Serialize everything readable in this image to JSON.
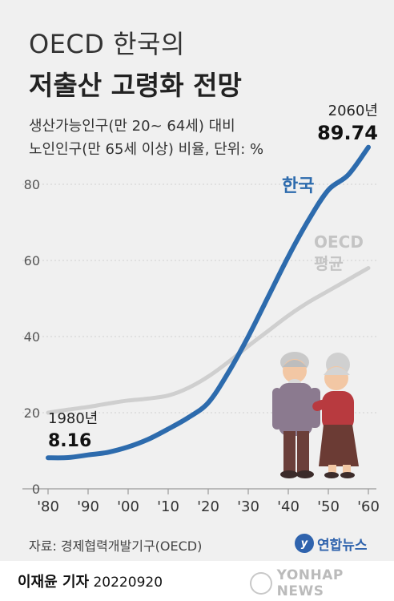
{
  "header": {
    "title_line1": "OECD 한국의",
    "title_line2": "저출산 고령화 전망",
    "subtitle_line1": "생산가능인구(만 20~ 64세) 대비",
    "subtitle_line2": "노인인구(만 65세 이상) 비율, 단위: %"
  },
  "footer": {
    "source": "자료: 경제협력개발기구(OECD)",
    "agency_logo": "연합뉴스",
    "reporter": "이재윤 기자",
    "date": "20220920",
    "watermark": "YONHAP NEWS"
  },
  "colors": {
    "korea": "#2d6bad",
    "oecd": "#cfcfcf",
    "background": "#f0f0f0"
  },
  "chart_data": {
    "type": "line",
    "x_ticks": [
      "'80",
      "'90",
      "'00",
      "'10",
      "'20",
      "'30",
      "'40",
      "'50",
      "'60"
    ],
    "y_ticks": [
      "0",
      "20",
      "40",
      "60",
      "80"
    ],
    "xlim": [
      1980,
      2060
    ],
    "ylim": [
      0,
      90
    ],
    "grid": "horizontal",
    "series": [
      {
        "name": "한국",
        "points": [
          [
            1980,
            8.16
          ],
          [
            1985,
            8.2
          ],
          [
            1990,
            8.9
          ],
          [
            1995,
            9.6
          ],
          [
            2000,
            11.0
          ],
          [
            2005,
            13.0
          ],
          [
            2010,
            15.7
          ],
          [
            2015,
            18.7
          ],
          [
            2020,
            22.6
          ],
          [
            2025,
            30.5
          ],
          [
            2030,
            40.0
          ],
          [
            2035,
            50.5
          ],
          [
            2040,
            61.0
          ],
          [
            2045,
            70.5
          ],
          [
            2050,
            78.5
          ],
          [
            2055,
            82.5
          ],
          [
            2060,
            89.74
          ]
        ]
      },
      {
        "name": "OECD 평균",
        "points": [
          [
            1980,
            20.0
          ],
          [
            1985,
            20.8
          ],
          [
            1990,
            21.5
          ],
          [
            1995,
            22.4
          ],
          [
            2000,
            23.2
          ],
          [
            2005,
            23.7
          ],
          [
            2010,
            24.5
          ],
          [
            2015,
            26.5
          ],
          [
            2020,
            29.5
          ],
          [
            2025,
            33.3
          ],
          [
            2030,
            37.5
          ],
          [
            2035,
            41.5
          ],
          [
            2040,
            45.5
          ],
          [
            2045,
            49.0
          ],
          [
            2050,
            52.0
          ],
          [
            2055,
            55.0
          ],
          [
            2060,
            58.0
          ]
        ]
      }
    ],
    "annotations": {
      "start_year": "1980년",
      "start_value": "8.16",
      "end_year": "2060년",
      "end_value": "89.74",
      "korea_label": "한국",
      "oecd_label_line1": "OECD",
      "oecd_label_line2": "평균"
    }
  }
}
